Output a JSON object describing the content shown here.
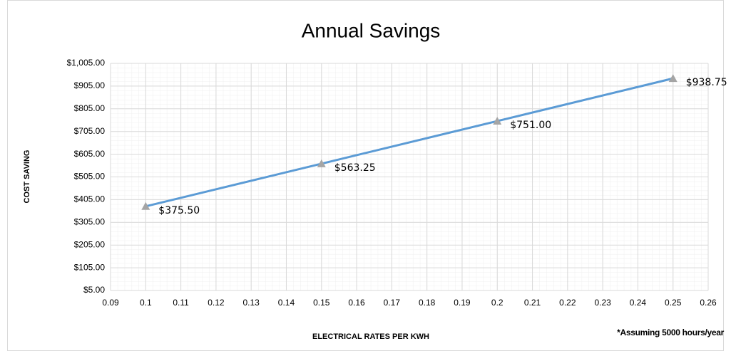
{
  "chart_data": {
    "type": "line",
    "title": "Annual Savings",
    "x_label": "ELECTRICAL RATES PER KWH",
    "y_label": "COST SAVING",
    "annotation": "*Assuming 5000 hours/year",
    "x": [
      0.1,
      0.15,
      0.2,
      0.25
    ],
    "series": [
      {
        "name": "Annual Savings",
        "color": "#5b9bd5",
        "marker_color": "#a5a5a5",
        "values": [
          375.5,
          563.25,
          751,
          938.75
        ],
        "value_labels": [
          "$375.50",
          "$563.25",
          "$751.00",
          "$938.75"
        ]
      }
    ],
    "xlim": [
      0.09,
      0.26
    ],
    "xticks": [
      0.09,
      0.1,
      0.11,
      0.12,
      0.13,
      0.14,
      0.15,
      0.16,
      0.17,
      0.18,
      0.19,
      0.2,
      0.21,
      0.22,
      0.23,
      0.24,
      0.25,
      0.26
    ],
    "ylim": [
      5,
      1005
    ],
    "yticks": [
      {
        "value": 5,
        "label": "$5.00"
      },
      {
        "value": 105,
        "label": "$105.00"
      },
      {
        "value": 205,
        "label": "$205.00"
      },
      {
        "value": 305,
        "label": "$305.00"
      },
      {
        "value": 405,
        "label": "$405.00"
      },
      {
        "value": 505,
        "label": "$505.00"
      },
      {
        "value": 605,
        "label": "$605.00"
      },
      {
        "value": 705,
        "label": "$705.00"
      },
      {
        "value": 805,
        "label": "$805.00"
      },
      {
        "value": 905,
        "label": "$905.00"
      },
      {
        "value": 1005,
        "label": "$1,005.00"
      }
    ],
    "grid": true
  }
}
